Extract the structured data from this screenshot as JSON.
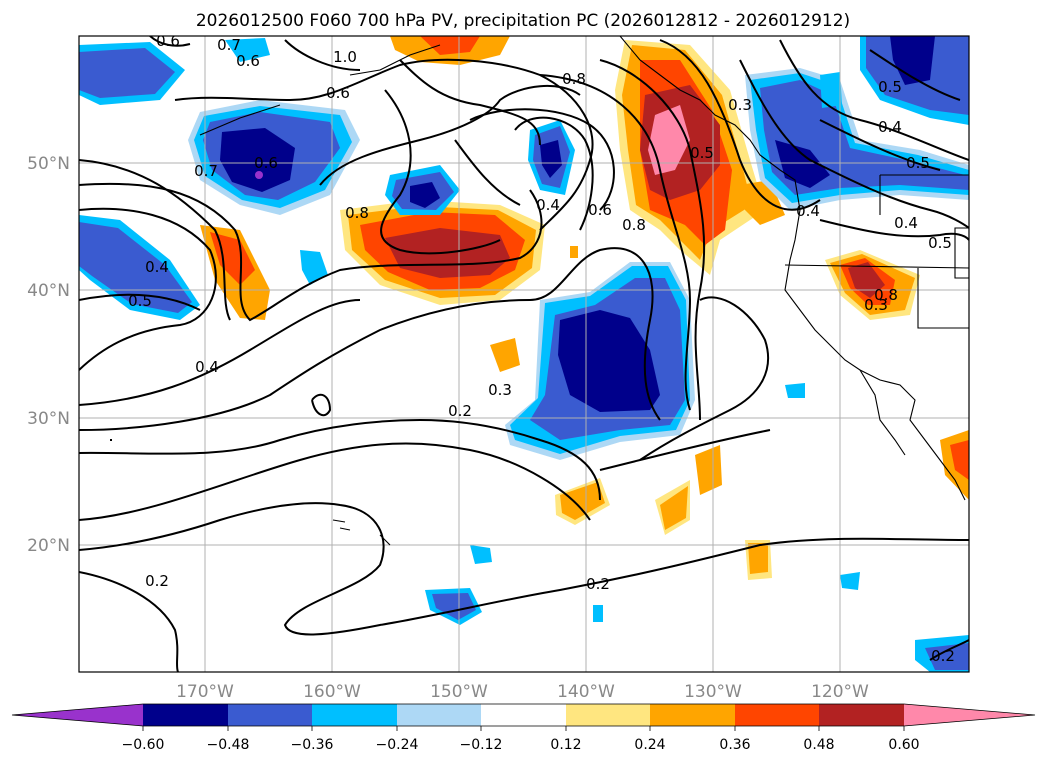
{
  "title": "2026012500 F060 700 hPa PV, precipitation PC (2026012812 - 2026012912)",
  "map": {
    "lon_ticks": [
      "170°W",
      "160°W",
      "150°W",
      "140°W",
      "130°W",
      "120°W"
    ],
    "lat_ticks": [
      "50°N",
      "40°N",
      "30°N",
      "20°N"
    ],
    "gridlines": true,
    "contour_labels": [
      "0.6",
      "0.7",
      "1.0",
      "0.6",
      "0.7",
      "0.6",
      "0.8",
      "0.8",
      "0.3",
      "0.5",
      "0.4",
      "0.5",
      "0.4",
      "0.5",
      "0.4",
      "0.8",
      "0.4",
      "0.6",
      "0.8",
      "0.4",
      "0.3",
      "0.4",
      "0.5",
      "0.3",
      "0.2",
      "0.2",
      "0.2",
      "0.2",
      "0.6",
      "0.5"
    ],
    "contour_color": "#000000",
    "coastline_color": "#000000"
  },
  "colorbar": {
    "ticks": [
      "−0.60",
      "−0.48",
      "−0.36",
      "−0.24",
      "−0.12",
      "0.12",
      "0.24",
      "0.36",
      "0.48",
      "0.60"
    ],
    "colors": [
      "#9932cc",
      "#00008b",
      "#3a5bd0",
      "#00bfff",
      "#add8f5",
      "#ffffff",
      "#ffe680",
      "#ffa500",
      "#ff4500",
      "#b22222",
      "#ff88aa"
    ],
    "extend": "both"
  }
}
